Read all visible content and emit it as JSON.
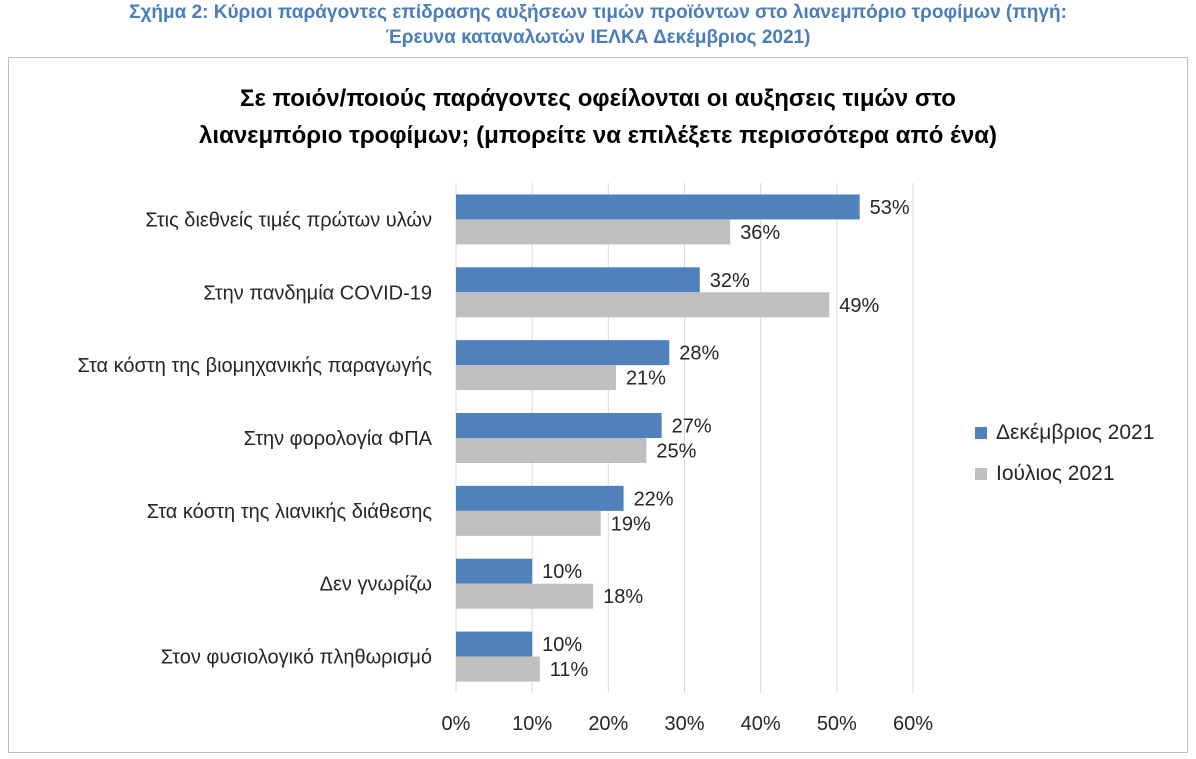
{
  "caption": {
    "line1": "Σχήμα 2: Κύριοι παράγοντες επίδρασης αυξήσεων τιμών προϊόντων στο λιανεμπόριο τροφίμων (πηγή:",
    "line2": "Έρευνα καταναλωτών ΙΕΛΚΑ Δεκέμβριος 2021)"
  },
  "colors": {
    "series1": "#4f81bd",
    "series2": "#bfbfbf",
    "grid": "#d9d9d9",
    "caption": "#4a7ebb"
  },
  "chart_data": {
    "type": "bar",
    "orientation": "horizontal",
    "title_line1": "Σε ποιόν/ποιούς παράγοντες οφείλονται οι αυξησεις τιμών στο",
    "title_line2": "λιανεμπόριο τροφίμων; (μπορείτε να επιλέξετε περισσότερα από ένα)",
    "categories": [
      "Στις διεθνείς τιμές πρώτων υλών",
      "Στην πανδημία COVID-19",
      "Στα κόστη της βιομηχανικής παραγωγής",
      "Στην φορολογία ΦΠΑ",
      "Στα κόστη της λιανικής διάθεσης",
      "Δεν γνωρίζω",
      "Στον φυσιολογικό πληθωρισμό"
    ],
    "series": [
      {
        "name": "Δεκέμβριος 2021",
        "values": [
          53,
          32,
          28,
          27,
          22,
          10,
          10
        ],
        "labels": [
          "53%",
          "32%",
          "28%",
          "27%",
          "22%",
          "10%",
          "10%"
        ]
      },
      {
        "name": "Ιούλιος 2021",
        "values": [
          36,
          49,
          21,
          25,
          19,
          18,
          11
        ],
        "labels": [
          "36%",
          "49%",
          "21%",
          "25%",
          "19%",
          "18%",
          "11%"
        ]
      }
    ],
    "x_ticks": [
      "0%",
      "10%",
      "20%",
      "30%",
      "40%",
      "50%",
      "60%"
    ],
    "xlim": [
      0,
      60
    ],
    "grid": true,
    "legend_position": "right"
  }
}
